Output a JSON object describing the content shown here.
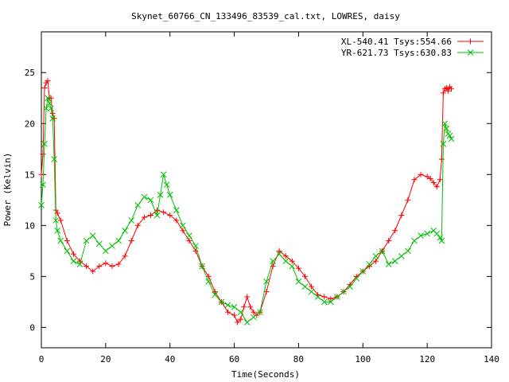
{
  "chart_data": {
    "type": "line",
    "title": "Skynet_60766_CN_133496_83539_cal.txt, LOWRES, daisy",
    "xlabel": "Time(Seconds)",
    "ylabel": "Power (Kelvin)",
    "xlim": [
      0,
      140
    ],
    "ylim": [
      -2,
      29
    ],
    "xticks": [
      0,
      20,
      40,
      60,
      80,
      100,
      120,
      140
    ],
    "yticks": [
      0,
      5,
      10,
      15,
      20,
      25
    ],
    "grid": false,
    "legend_position": "top-right",
    "series": [
      {
        "name": "XL-540.41 Tsys:554.66",
        "color": "#ff0000",
        "marker": "plus",
        "x": [
          0,
          0.5,
          1,
          1.5,
          2,
          2.5,
          3,
          3.5,
          4,
          4.5,
          5,
          6,
          8,
          10,
          12,
          14,
          16,
          18,
          20,
          22,
          24,
          26,
          28,
          30,
          32,
          34,
          36,
          38,
          40,
          42,
          44,
          46,
          48,
          50,
          52,
          54,
          56,
          58,
          60,
          61,
          62,
          63,
          64,
          65,
          66,
          67,
          68,
          70,
          72,
          74,
          76,
          78,
          80,
          82,
          84,
          86,
          88,
          90,
          92,
          94,
          96,
          98,
          100,
          102,
          104,
          106,
          108,
          110,
          112,
          114,
          116,
          118,
          120,
          121,
          122,
          123,
          124,
          124.5,
          125,
          125.5,
          126,
          126.5,
          127,
          127.5
        ],
        "y": [
          15,
          17,
          23.5,
          24,
          24.2,
          22.5,
          22.5,
          21,
          20.5,
          11.5,
          11.2,
          10.5,
          8.5,
          7.2,
          6.5,
          6,
          5.5,
          6,
          6.3,
          6,
          6.2,
          7,
          8.5,
          10,
          10.8,
          11,
          11.5,
          11.3,
          11,
          10.5,
          9.5,
          8.5,
          7.5,
          6,
          5,
          3.5,
          2.5,
          1.5,
          1.2,
          0.5,
          0.8,
          2,
          3,
          2,
          1.5,
          1.2,
          1.5,
          3.5,
          6,
          7.5,
          7,
          6.5,
          5.8,
          5,
          4,
          3.2,
          3,
          2.8,
          3,
          3.5,
          4.2,
          5,
          5.5,
          6,
          6.5,
          7.5,
          8.5,
          9.5,
          11,
          12.5,
          14.5,
          15,
          14.8,
          14.6,
          14.2,
          13.8,
          14.5,
          16.5,
          23,
          23.4,
          23.5,
          23.2,
          23.6,
          23.4
        ]
      },
      {
        "name": "YR-621.73 Tsys:630.83",
        "color": "#00c000",
        "marker": "cross",
        "x": [
          0,
          0.5,
          1,
          1.5,
          2,
          2.5,
          3,
          3.5,
          4,
          4.5,
          5,
          6,
          8,
          10,
          12,
          14,
          16,
          18,
          20,
          22,
          24,
          26,
          28,
          30,
          32,
          34,
          36,
          37,
          38,
          39,
          40,
          42,
          44,
          46,
          48,
          50,
          52,
          54,
          56,
          58,
          60,
          62,
          64,
          66,
          68,
          70,
          72,
          74,
          76,
          78,
          80,
          82,
          84,
          86,
          88,
          90,
          92,
          94,
          96,
          98,
          100,
          102,
          104,
          106,
          108,
          110,
          112,
          114,
          116,
          118,
          120,
          122,
          123,
          124,
          124.5,
          125,
          125.5,
          126,
          126.5,
          127,
          127.5
        ],
        "y": [
          12,
          14,
          18,
          21.5,
          22.5,
          22,
          21.5,
          20.5,
          16.5,
          10.5,
          9.5,
          8.5,
          7.5,
          6.5,
          6.2,
          8.5,
          9,
          8.2,
          7.5,
          8,
          8.5,
          9.5,
          10.5,
          12,
          12.8,
          12.5,
          11,
          13,
          15,
          14,
          13,
          11.5,
          10,
          9,
          8,
          6,
          4.5,
          3.2,
          2.5,
          2.2,
          2,
          1.5,
          0.5,
          1,
          1.5,
          4.5,
          6.5,
          7.2,
          6.5,
          6,
          4.5,
          4,
          3.5,
          3,
          2.5,
          2.5,
          3,
          3.5,
          4,
          4.8,
          5.5,
          6.2,
          7,
          7.5,
          6.2,
          6.5,
          7,
          7.5,
          8.5,
          9,
          9.2,
          9.5,
          9.2,
          8.8,
          8.5,
          18,
          20,
          19.5,
          19,
          18.8,
          18.5
        ]
      }
    ]
  }
}
